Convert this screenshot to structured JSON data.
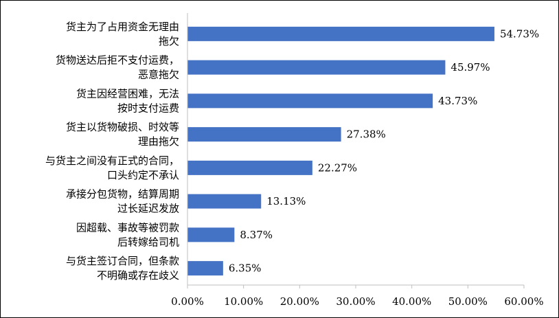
{
  "chart_data": {
    "type": "bar",
    "orientation": "horizontal",
    "title": "",
    "xlabel": "",
    "ylabel": "",
    "categories": [
      [
        "货主为了占用资金无理由",
        "拖欠"
      ],
      [
        "货物送达后拒不支付运费，",
        "恶意拖欠"
      ],
      [
        "货主因经营困难，无法",
        "按时支付运费"
      ],
      [
        "货主以货物破损、时效等",
        "理由拖欠"
      ],
      [
        "与货主之间没有正式的合同，",
        "口头约定不承认"
      ],
      [
        "承接分包货物，结算周期",
        "过长延迟发放"
      ],
      [
        "因超载、事故等被罚款",
        "后转嫁给司机"
      ],
      [
        "与货主签订合同，但条款",
        "不明确或存在歧义"
      ]
    ],
    "values": [
      54.73,
      45.97,
      43.73,
      27.38,
      22.27,
      13.13,
      8.37,
      6.35
    ],
    "value_labels": [
      "54.73%",
      "45.97%",
      "43.73%",
      "27.38%",
      "22.27%",
      "13.13%",
      "8.37%",
      "6.35%"
    ],
    "xlim": [
      0,
      60
    ],
    "x_ticks": [
      0,
      10,
      20,
      30,
      40,
      50,
      60
    ],
    "x_tick_labels": [
      "0.00%",
      "10.00%",
      "20.00%",
      "30.00%",
      "40.00%",
      "50.00%",
      "60.00%"
    ],
    "bar_color": "#4472C4",
    "grid": false,
    "legend": "none"
  }
}
